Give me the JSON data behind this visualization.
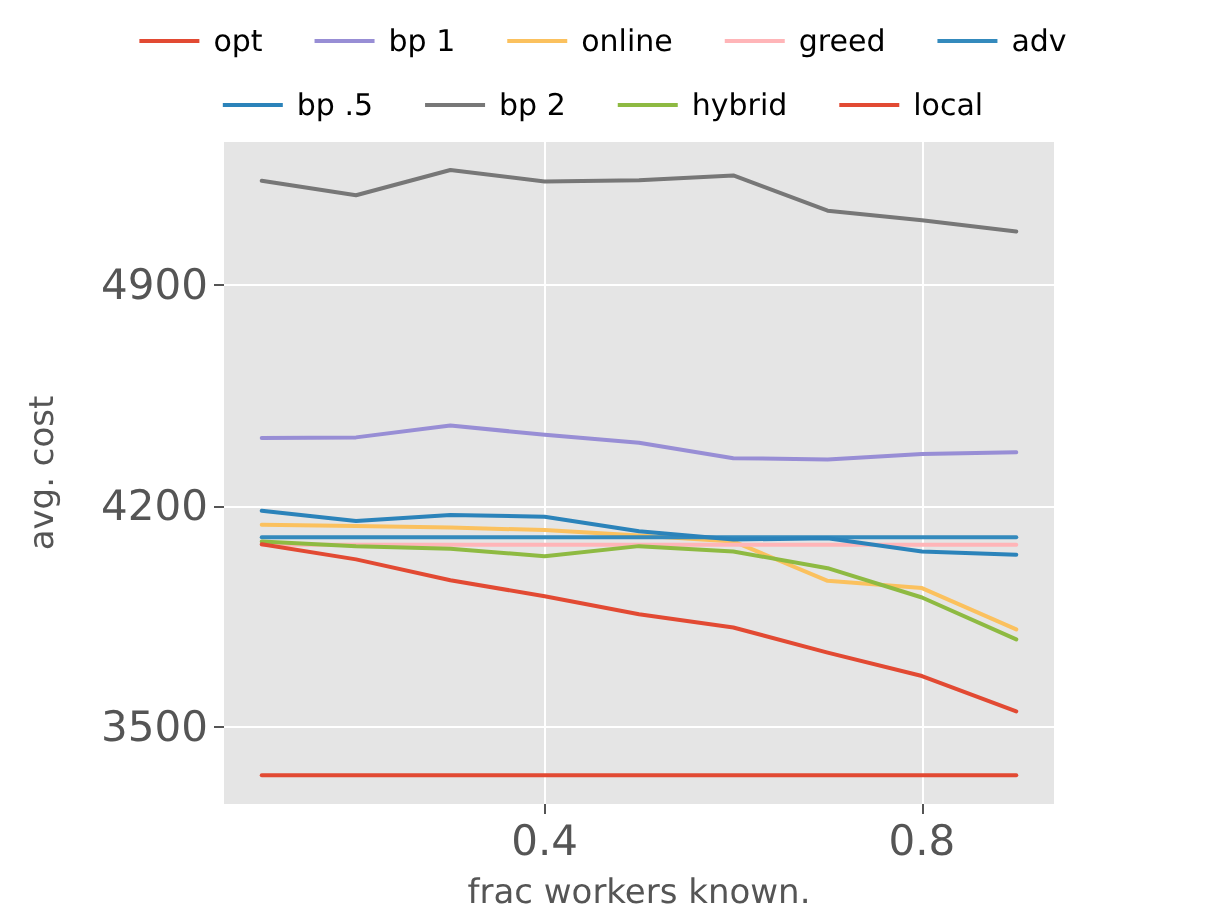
{
  "chart_data": {
    "type": "line",
    "xlabel": "frac workers known.",
    "ylabel": "avg. cost",
    "x": [
      0.1,
      0.2,
      0.3,
      0.4,
      0.5,
      0.6,
      0.7,
      0.8,
      0.9
    ],
    "series": [
      {
        "name": "opt",
        "color": "#e24a33",
        "values": [
          3346,
          3346,
          3346,
          3346,
          3346,
          3346,
          3346,
          3346,
          3346
        ]
      },
      {
        "name": "bp 1",
        "color": "#988ed5",
        "values": [
          4416,
          4418,
          4456,
          4426,
          4401,
          4352,
          4348,
          4365,
          4371
        ]
      },
      {
        "name": "online",
        "color": "#fbc15e",
        "values": [
          4141,
          4137,
          4132,
          4124,
          4107,
          4088,
          3963,
          3940,
          3809
        ]
      },
      {
        "name": "greed",
        "color": "#ffb5b8",
        "values": [
          4077,
          4077,
          4077,
          4077,
          4077,
          4077,
          4077,
          4077,
          4077
        ]
      },
      {
        "name": "adv",
        "color": "#348abd",
        "values": [
          4101,
          4101,
          4101,
          4101,
          4101,
          4101,
          4101,
          4101,
          4101
        ]
      },
      {
        "name": "bp .5",
        "color": "#2b83ba",
        "values": [
          4185,
          4153,
          4172,
          4166,
          4120,
          4094,
          4098,
          4056,
          4046
        ]
      },
      {
        "name": "bp 2",
        "color": "#777777",
        "values": [
          5232,
          5186,
          5266,
          5230,
          5234,
          5249,
          5137,
          5107,
          5071
        ]
      },
      {
        "name": "hybrid",
        "color": "#8eba42",
        "values": [
          4088,
          4073,
          4065,
          4041,
          4073,
          4056,
          4003,
          3910,
          3777
        ]
      },
      {
        "name": "local",
        "color": "#e24a33",
        "values": [
          4079,
          4031,
          3965,
          3914,
          3857,
          3815,
          3735,
          3661,
          3549
        ]
      }
    ],
    "xlim": [
      0.06,
      0.94
    ],
    "ylim": [
      3255,
      5355
    ],
    "xticks": [
      0.4,
      0.8
    ],
    "yticks": [
      3500,
      4200,
      4900
    ],
    "grid": true,
    "legend": "top",
    "marker": "none",
    "line_style": "solid"
  }
}
